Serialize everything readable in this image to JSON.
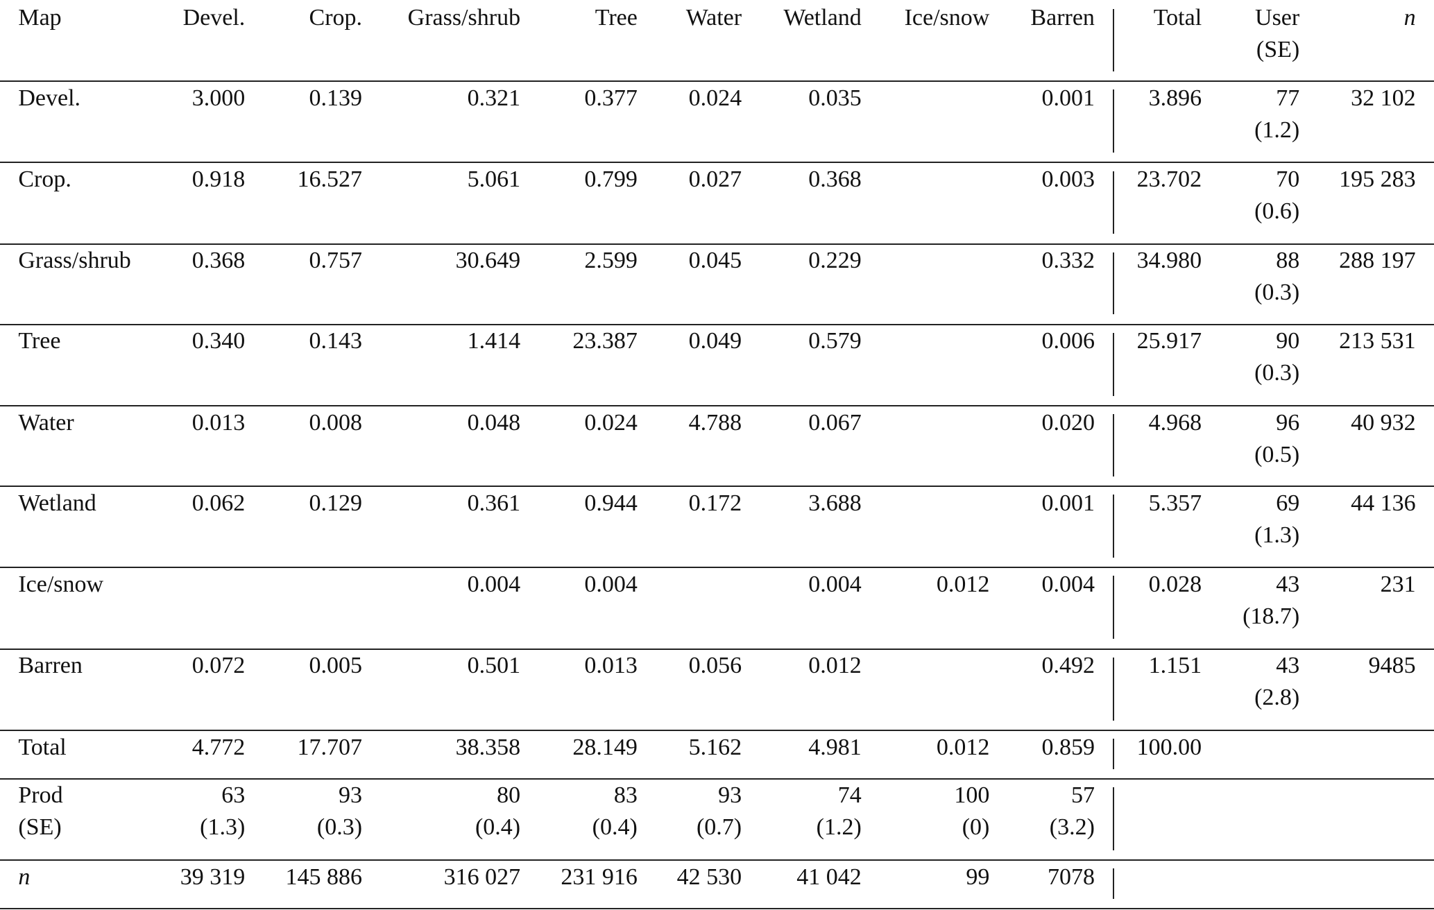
{
  "table": {
    "header": [
      "Map",
      "Devel.",
      "Crop.",
      "Grass/shrub",
      "Tree",
      "Water",
      "Wetland",
      "Ice/snow",
      "Barren",
      "Total",
      [
        "User",
        "(SE)"
      ],
      "n"
    ],
    "rows": [
      [
        "Devel.",
        "3.000",
        "0.139",
        "0.321",
        "0.377",
        "0.024",
        "0.035",
        null,
        "0.001",
        "3.896",
        [
          "77",
          "(1.2)"
        ],
        "32 102"
      ],
      [
        "Crop.",
        "0.918",
        "16.527",
        "5.061",
        "0.799",
        "0.027",
        "0.368",
        null,
        "0.003",
        "23.702",
        [
          "70",
          "(0.6)"
        ],
        "195 283"
      ],
      [
        "Grass/shrub",
        "0.368",
        "0.757",
        "30.649",
        "2.599",
        "0.045",
        "0.229",
        null,
        "0.332",
        "34.980",
        [
          "88",
          "(0.3)"
        ],
        "288 197"
      ],
      [
        "Tree",
        "0.340",
        "0.143",
        "1.414",
        "23.387",
        "0.049",
        "0.579",
        null,
        "0.006",
        "25.917",
        [
          "90",
          "(0.3)"
        ],
        "213 531"
      ],
      [
        "Water",
        "0.013",
        "0.008",
        "0.048",
        "0.024",
        "4.788",
        "0.067",
        null,
        "0.020",
        "4.968",
        [
          "96",
          "(0.5)"
        ],
        "40 932"
      ],
      [
        "Wetland",
        "0.062",
        "0.129",
        "0.361",
        "0.944",
        "0.172",
        "3.688",
        null,
        "0.001",
        "5.357",
        [
          "69",
          "(1.3)"
        ],
        "44 136"
      ],
      [
        "Ice/snow",
        null,
        null,
        "0.004",
        "0.004",
        null,
        "0.004",
        "0.012",
        "0.004",
        "0.028",
        [
          "43",
          "(18.7)"
        ],
        "231"
      ],
      [
        "Barren",
        "0.072",
        "0.005",
        "0.501",
        "0.013",
        "0.056",
        "0.012",
        null,
        "0.492",
        "1.151",
        [
          "43",
          "(2.8)"
        ],
        "9485"
      ],
      [
        "Total",
        "4.772",
        "17.707",
        "38.358",
        "28.149",
        "5.162",
        "4.981",
        "0.012",
        "0.859",
        "100.00",
        null,
        null
      ],
      [
        [
          "Prod",
          "(SE)"
        ],
        [
          "63",
          "(1.3)"
        ],
        [
          "93",
          "(0.3)"
        ],
        [
          "80",
          "(0.4)"
        ],
        [
          "83",
          "(0.4)"
        ],
        [
          "93",
          "(0.7)"
        ],
        [
          "74",
          "(1.2)"
        ],
        [
          "100",
          "(0)"
        ],
        [
          "57",
          "(3.2)"
        ],
        null,
        null,
        null
      ],
      [
        "n",
        "39 319",
        "145 886",
        "316 027",
        "231 916",
        "42 530",
        "41 042",
        "99",
        "7078",
        null,
        null,
        null
      ]
    ]
  }
}
